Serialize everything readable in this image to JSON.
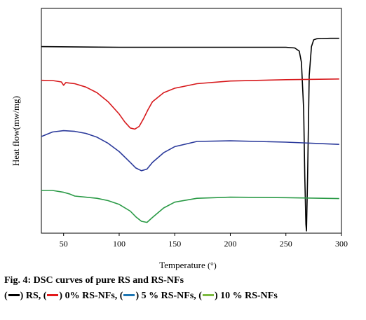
{
  "chart_data": {
    "type": "line",
    "title": "",
    "xlabel": "Temperature",
    "xlabel_unit": "(°)",
    "ylabel": "Heat flow(mw/mg)",
    "xlim": [
      30,
      300
    ],
    "ylim": [
      0,
      100
    ],
    "x_ticks": [
      50,
      100,
      150,
      200,
      250,
      300
    ],
    "grid": false,
    "legend": "below",
    "series": [
      {
        "name": "RS",
        "color": "#000000",
        "x": [
          30,
          100,
          200,
          250,
          258,
          262,
          264,
          266,
          267,
          268,
          268.5,
          269.5,
          271,
          273,
          275,
          278,
          282,
          290,
          298
        ],
        "y": [
          83.0,
          82.7,
          82.7,
          82.7,
          82.4,
          81.0,
          76.0,
          55.0,
          25.0,
          4.0,
          1.0,
          25.0,
          70.0,
          83.0,
          86.0,
          86.5,
          86.6,
          86.7,
          86.7
        ]
      },
      {
        "name": "0% RS-NFs",
        "color": "#d7191c",
        "x": [
          30,
          40,
          48,
          50,
          52,
          55,
          60,
          70,
          80,
          90,
          100,
          105,
          110,
          114,
          118,
          122,
          126,
          130,
          140,
          150,
          170,
          200,
          250,
          298
        ],
        "y": [
          68.0,
          67.9,
          67.3,
          65.8,
          67.0,
          66.8,
          66.5,
          65.0,
          62.5,
          58.5,
          53.0,
          49.5,
          46.8,
          46.3,
          47.5,
          51.0,
          55.0,
          58.5,
          62.5,
          64.5,
          66.5,
          67.7,
          68.3,
          68.6
        ]
      },
      {
        "name": "5 % RS-NFs",
        "color": "#2b3a9b",
        "x": [
          30,
          40,
          50,
          60,
          70,
          80,
          90,
          100,
          110,
          115,
          120,
          125,
          130,
          140,
          150,
          170,
          200,
          250,
          298
        ],
        "y": [
          43.0,
          45.0,
          45.6,
          45.3,
          44.4,
          42.7,
          40.0,
          36.3,
          31.5,
          29.0,
          27.8,
          28.5,
          31.5,
          35.8,
          38.5,
          40.8,
          41.1,
          40.5,
          39.5
        ]
      },
      {
        "name": "10 % RS-NFs",
        "color": "#2a9a46",
        "x": [
          30,
          40,
          50,
          55,
          60,
          70,
          80,
          90,
          100,
          110,
          115,
          120,
          125,
          130,
          140,
          150,
          170,
          200,
          250,
          298
        ],
        "y": [
          19.0,
          19.0,
          18.2,
          17.5,
          16.5,
          16.0,
          15.5,
          14.5,
          12.8,
          9.8,
          7.3,
          5.3,
          4.8,
          7.0,
          11.2,
          13.8,
          15.5,
          16.0,
          15.8,
          15.4
        ]
      }
    ]
  },
  "caption": {
    "title": "Fig. 4: DSC curves of pure RS and RS-NFs",
    "legend_items": [
      {
        "text": "RS,",
        "color": "#000000"
      },
      {
        "text": "0% RS-NFs,",
        "color": "#e31a1c"
      },
      {
        "text": "5 % RS-NFs,",
        "color": "#1f77b4"
      },
      {
        "text": "10 % RS-NFs",
        "color": "#7dbb42"
      }
    ]
  }
}
